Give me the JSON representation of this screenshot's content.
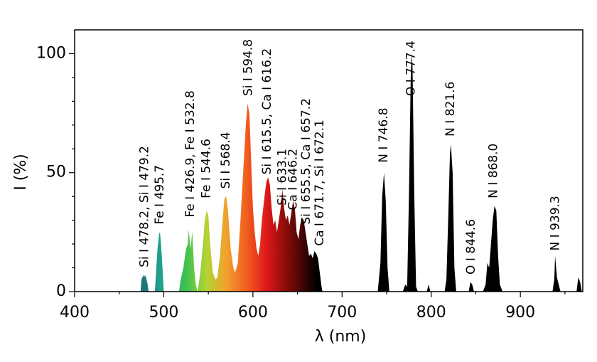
{
  "chart_data": {
    "type": "area",
    "xlabel": "λ (nm)",
    "ylabel": "I (%)",
    "xlim": [
      400,
      970
    ],
    "ylim": [
      0,
      110
    ],
    "xticks": [
      400,
      500,
      600,
      700,
      800,
      900
    ],
    "yticks": [
      0,
      50,
      100
    ],
    "xminorticks": [
      450,
      550,
      650,
      750,
      850,
      950
    ],
    "yminorticks": [
      10,
      20,
      30,
      40,
      60,
      70,
      80,
      90
    ],
    "gradient": [
      {
        "x": 470,
        "color": "#1d6470"
      },
      {
        "x": 495,
        "color": "#1fa08c"
      },
      {
        "x": 525,
        "color": "#3cc250"
      },
      {
        "x": 548,
        "color": "#b5d333"
      },
      {
        "x": 570,
        "color": "#f2a12e"
      },
      {
        "x": 594,
        "color": "#f05a1e"
      },
      {
        "x": 615,
        "color": "#e0191a"
      },
      {
        "x": 640,
        "color": "#7d0a08"
      },
      {
        "x": 672,
        "color": "#000000"
      }
    ],
    "x": [
      400,
      472,
      474,
      475,
      477,
      478,
      479,
      480,
      482,
      483,
      490,
      493,
      495,
      496,
      498,
      500,
      517,
      519,
      522,
      525,
      527,
      528,
      530,
      532,
      534,
      536,
      538,
      541,
      544,
      546,
      548,
      550,
      552,
      555,
      558,
      560,
      563,
      566,
      568,
      570,
      572,
      575,
      578,
      580,
      583,
      586,
      589,
      592,
      594,
      596,
      598,
      600,
      602,
      604,
      606,
      608,
      610,
      613,
      615,
      617,
      619,
      621,
      623,
      625,
      627,
      629,
      631,
      633,
      635,
      637,
      639,
      641,
      643,
      645,
      647,
      649,
      651,
      653,
      655,
      657,
      659,
      661,
      663,
      665,
      667,
      669,
      671,
      673,
      675,
      677,
      678,
      740,
      743,
      745,
      747,
      749,
      751,
      753,
      768,
      771,
      773,
      775,
      777,
      778,
      779,
      781,
      783,
      785,
      795,
      797,
      799,
      815,
      817,
      819,
      821,
      822,
      824,
      826,
      828,
      842,
      844,
      846,
      848,
      858,
      861,
      863,
      865,
      867,
      869,
      871,
      873,
      875,
      877,
      880,
      936,
      938,
      939,
      941,
      943,
      945,
      963,
      965,
      967,
      969,
      970
    ],
    "values": [
      0,
      0,
      0,
      5,
      7,
      6,
      7,
      6,
      3,
      0,
      0,
      18,
      25,
      24,
      14,
      0,
      0,
      5,
      10,
      18,
      20,
      26,
      18,
      25,
      10,
      3,
      0,
      8,
      20,
      30,
      34,
      32,
      20,
      8,
      5,
      6,
      15,
      30,
      39,
      40,
      34,
      18,
      10,
      8,
      12,
      30,
      50,
      70,
      79,
      75,
      55,
      35,
      25,
      18,
      15,
      20,
      30,
      40,
      46,
      48,
      45,
      35,
      28,
      30,
      25,
      30,
      35,
      43,
      35,
      30,
      32,
      28,
      33,
      38,
      35,
      25,
      22,
      28,
      31,
      30,
      25,
      20,
      15,
      16,
      14,
      17,
      16,
      14,
      8,
      2,
      0,
      0,
      12,
      40,
      50,
      38,
      10,
      0,
      0,
      3,
      2,
      40,
      90,
      100,
      95,
      40,
      2,
      0,
      0,
      3,
      0,
      0,
      5,
      30,
      58,
      62,
      50,
      10,
      0,
      0,
      4,
      3,
      0,
      0,
      3,
      12,
      10,
      20,
      30,
      36,
      34,
      15,
      3,
      0,
      0,
      5,
      15,
      6,
      3,
      0,
      0,
      6,
      4,
      0,
      0
    ],
    "annotations": [
      {
        "text": "Si I 478.2, Si I 479.2",
        "x": 478.7,
        "y": 9
      },
      {
        "text": "Fe I 495.7",
        "x": 495.7,
        "y": 27
      },
      {
        "text": "Fe I 426.9, Fe I 532.8",
        "x": 530,
        "y": 30
      },
      {
        "text": "Fe I 544.6",
        "x": 548,
        "y": 38
      },
      {
        "text": "Si I 568.4",
        "x": 570,
        "y": 42
      },
      {
        "text": "Si I 594.8",
        "x": 594.8,
        "y": 81
      },
      {
        "text": "Si I 615.5, Ca I 616.2",
        "x": 616,
        "y": 48
      },
      {
        "text": "Si I 633.1",
        "x": 633,
        "y": 35
      },
      {
        "text": "Ca I 646.2",
        "x": 645,
        "y": 33
      },
      {
        "text": "Si I 655.5, Ca I 657.2",
        "x": 660,
        "y": 27
      },
      {
        "text": "Ca I 671.7, Si I 672.1",
        "x": 675,
        "y": 18
      },
      {
        "text": "N I 746.8",
        "x": 746.8,
        "y": 53
      },
      {
        "text": "O I 777.4",
        "x": 777.4,
        "y": 81
      },
      {
        "text": "N I 821.6",
        "x": 821.6,
        "y": 64
      },
      {
        "text": "O I 844.6",
        "x": 845,
        "y": 6
      },
      {
        "text": "N I 868.0",
        "x": 870,
        "y": 38
      },
      {
        "text": "N I 939.3",
        "x": 939.3,
        "y": 16
      }
    ]
  }
}
